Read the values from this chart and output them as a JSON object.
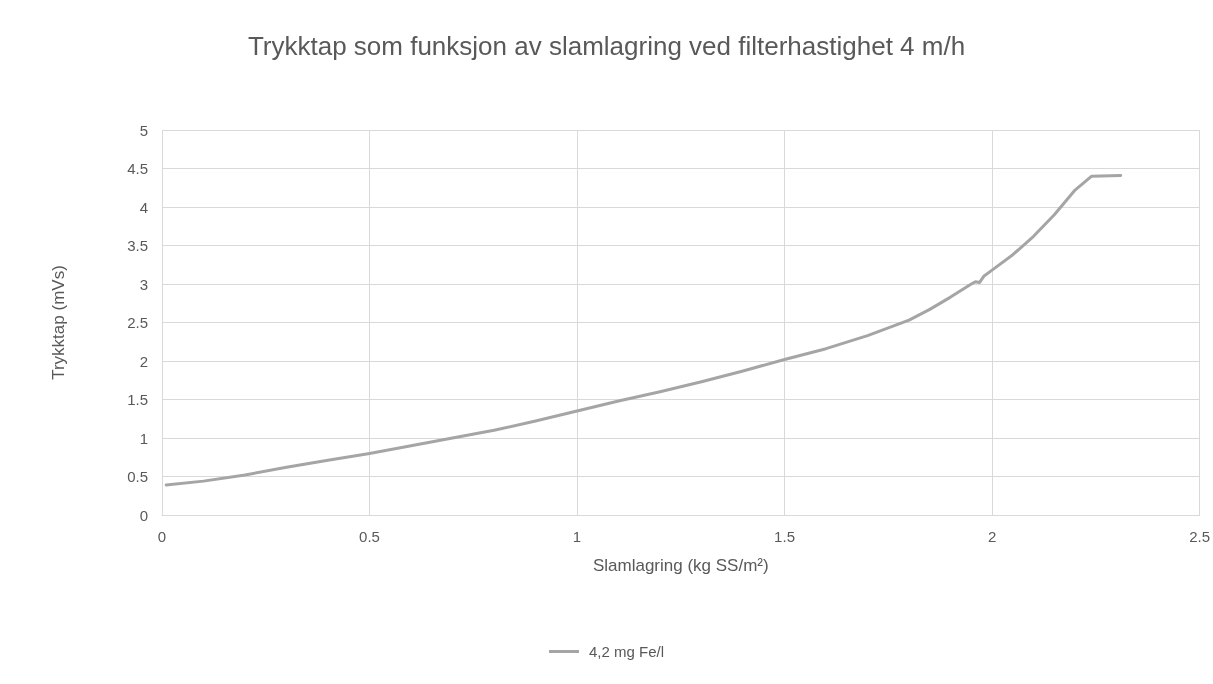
{
  "chart_data": {
    "type": "line",
    "title": "Trykktap som funksjon av slamlagring ved filterhastighet 4 m/h",
    "xlabel": "Slamlagring (kg SS/m²)",
    "ylabel": "Trykktap (mVs)",
    "x": [
      0.01,
      0.1,
      0.2,
      0.3,
      0.4,
      0.5,
      0.6,
      0.7,
      0.8,
      0.9,
      1.0,
      1.1,
      1.2,
      1.3,
      1.4,
      1.5,
      1.6,
      1.7,
      1.75,
      1.8,
      1.85,
      1.9,
      1.95,
      1.96,
      1.97,
      1.98,
      2.0,
      2.05,
      2.1,
      2.15,
      2.2,
      2.24,
      2.31
    ],
    "series": [
      {
        "name": "4,2 mg Fe/l",
        "color": "#a5a5a5",
        "values": [
          0.39,
          0.44,
          0.52,
          0.62,
          0.71,
          0.8,
          0.9,
          1.0,
          1.1,
          1.22,
          1.35,
          1.48,
          1.6,
          1.73,
          1.87,
          2.02,
          2.16,
          2.33,
          2.43,
          2.53,
          2.67,
          2.83,
          3.0,
          3.03,
          3.02,
          3.1,
          3.18,
          3.38,
          3.62,
          3.9,
          4.22,
          4.4,
          4.41
        ]
      }
    ],
    "xlim": [
      0,
      2.5
    ],
    "xticks": [
      0,
      0.5,
      1,
      1.5,
      2,
      2.5
    ],
    "ylim": [
      0,
      5
    ],
    "yticks": [
      0,
      0.5,
      1,
      1.5,
      2,
      2.5,
      3,
      3.5,
      4,
      4.5,
      5
    ],
    "grid": true,
    "legend": "bottom",
    "marker": "none",
    "line_style": "solid"
  }
}
